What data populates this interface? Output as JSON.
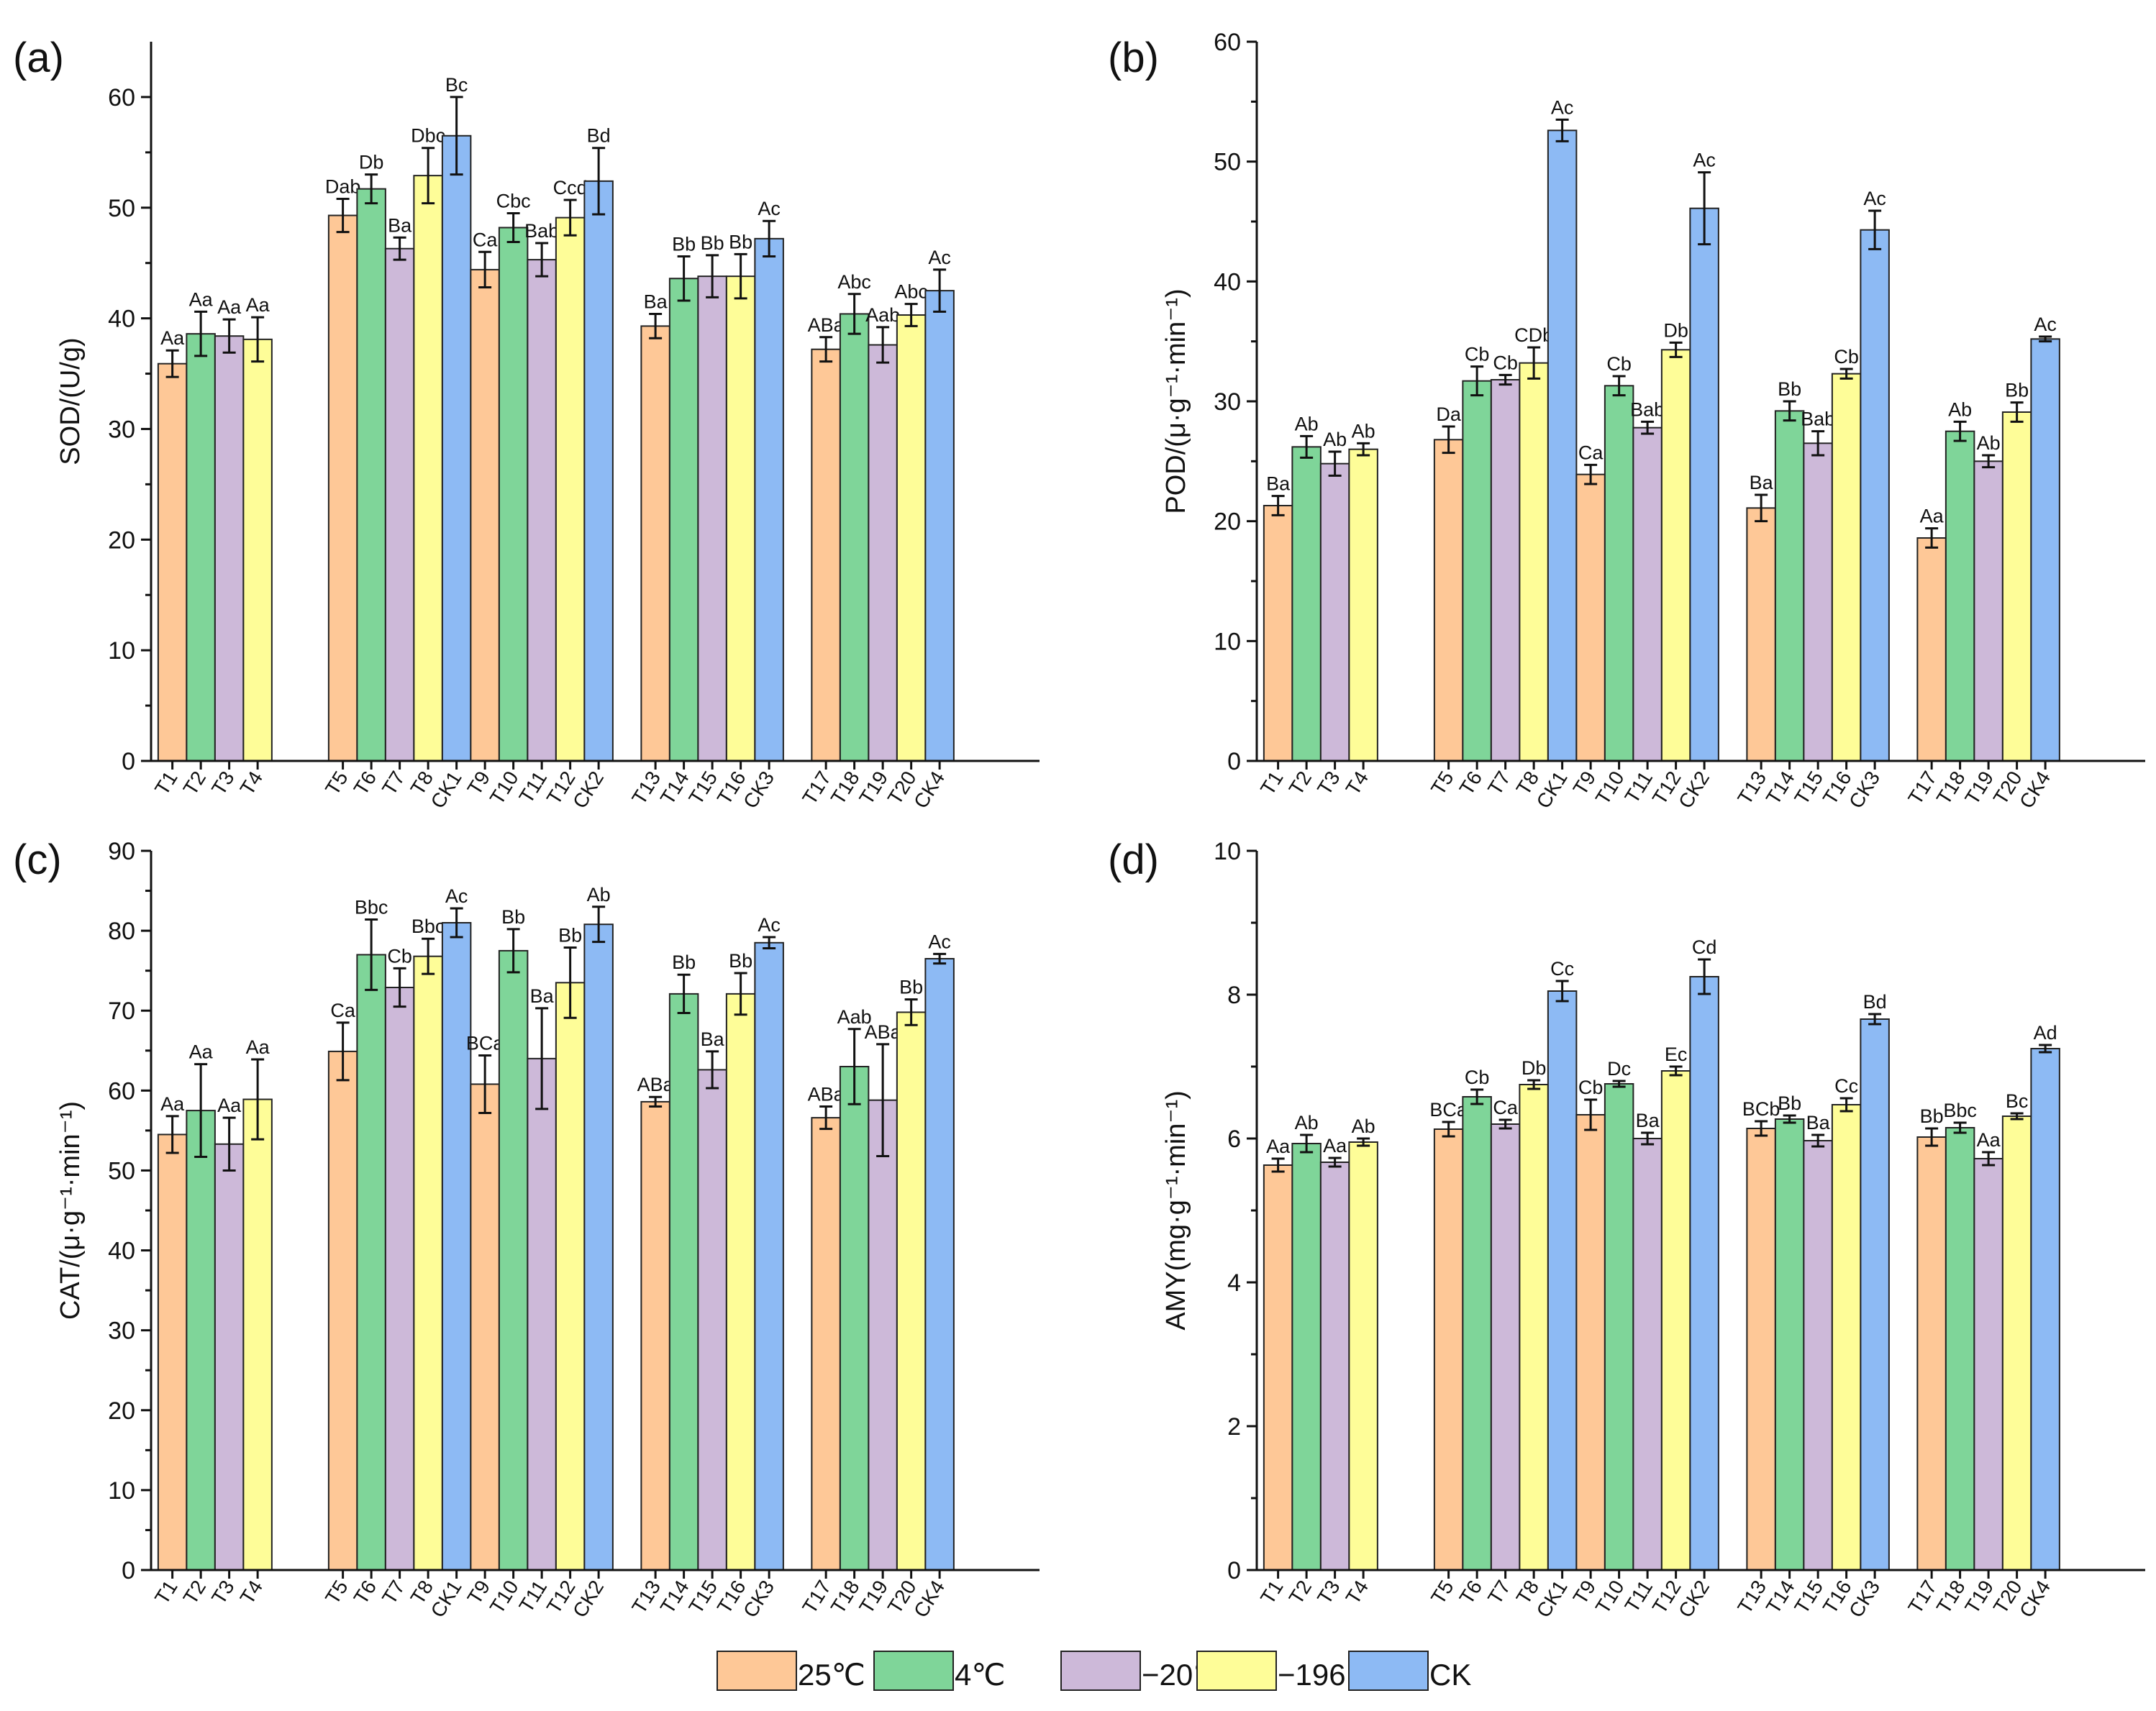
{
  "colors": {
    "25℃": "#FEC897",
    "4℃": "#7FD599",
    "−20℃": "#CDB9D9",
    "−196℃": "#FEFD98",
    "CK": "#8DBAF4"
  },
  "legend": [
    "25℃",
    "4℃",
    "−20℃",
    "−196℃",
    "CK"
  ],
  "chart_data": [
    {
      "panel": "(a)",
      "type": "bar",
      "ylabel": "SOD/(U/g)",
      "ylim": [
        0,
        65
      ],
      "yticks": [
        0,
        10,
        20,
        30,
        40,
        50,
        60
      ],
      "groups": [
        {
          "bars": [
            {
              "label": "T1",
              "series": "25℃",
              "value": 35.9,
              "err": 1.2,
              "sig": "Aa"
            },
            {
              "label": "T2",
              "series": "4℃",
              "value": 38.6,
              "err": 2.0,
              "sig": "Aa"
            },
            {
              "label": "T3",
              "series": "−20℃",
              "value": 38.4,
              "err": 1.5,
              "sig": "Aa"
            },
            {
              "label": "T4",
              "series": "−196℃",
              "value": 38.1,
              "err": 2.0,
              "sig": "Aa"
            }
          ]
        },
        {
          "bars": [
            {
              "label": "T5",
              "series": "25℃",
              "value": 49.3,
              "err": 1.5,
              "sig": "Dab"
            },
            {
              "label": "T6",
              "series": "4℃",
              "value": 51.7,
              "err": 1.3,
              "sig": "Db"
            },
            {
              "label": "T7",
              "series": "−20℃",
              "value": 46.3,
              "err": 1.0,
              "sig": "Ba"
            },
            {
              "label": "T8",
              "series": "−196℃",
              "value": 52.9,
              "err": 2.5,
              "sig": "Dbc"
            },
            {
              "label": "CK1",
              "series": "CK",
              "value": 56.5,
              "err": 3.5,
              "sig": "Bc"
            }
          ]
        },
        {
          "bars": [
            {
              "label": "T9",
              "series": "25℃",
              "value": 44.4,
              "err": 1.6,
              "sig": "Ca"
            },
            {
              "label": "T10",
              "series": "4℃",
              "value": 48.2,
              "err": 1.3,
              "sig": "Cbc"
            },
            {
              "label": "T11",
              "series": "−20℃",
              "value": 45.3,
              "err": 1.5,
              "sig": "Bab"
            },
            {
              "label": "T12",
              "series": "−196℃",
              "value": 49.1,
              "err": 1.6,
              "sig": "Ccd"
            },
            {
              "label": "CK2",
              "series": "CK",
              "value": 52.4,
              "err": 3.0,
              "sig": "Bd"
            }
          ]
        },
        {
          "bars": [
            {
              "label": "T13",
              "series": "25℃",
              "value": 39.3,
              "err": 1.1,
              "sig": "Ba"
            },
            {
              "label": "T14",
              "series": "4℃",
              "value": 43.6,
              "err": 2.0,
              "sig": "Bb"
            },
            {
              "label": "T15",
              "series": "−20℃",
              "value": 43.8,
              "err": 1.9,
              "sig": "Bb"
            },
            {
              "label": "T16",
              "series": "−196℃",
              "value": 43.8,
              "err": 2.0,
              "sig": "Bb"
            },
            {
              "label": "CK3",
              "series": "CK",
              "value": 47.2,
              "err": 1.6,
              "sig": "Ac"
            }
          ]
        },
        {
          "bars": [
            {
              "label": "T17",
              "series": "25℃",
              "value": 37.2,
              "err": 1.1,
              "sig": "ABa"
            },
            {
              "label": "T18",
              "series": "4℃",
              "value": 40.4,
              "err": 1.8,
              "sig": "Abc"
            },
            {
              "label": "T19",
              "series": "−20℃",
              "value": 37.6,
              "err": 1.6,
              "sig": "Aab"
            },
            {
              "label": "T20",
              "series": "−196℃",
              "value": 40.3,
              "err": 1.0,
              "sig": "Abc"
            },
            {
              "label": "CK4",
              "series": "CK",
              "value": 42.5,
              "err": 1.9,
              "sig": "Ac"
            }
          ]
        }
      ]
    },
    {
      "panel": "(b)",
      "type": "bar",
      "ylabel": "POD/(μ·g⁻¹·min⁻¹)",
      "ylim": [
        0,
        60
      ],
      "yticks": [
        0,
        10,
        20,
        30,
        40,
        50,
        60
      ],
      "groups": [
        {
          "bars": [
            {
              "label": "T1",
              "series": "25℃",
              "value": 21.3,
              "err": 0.8,
              "sig": "Ba"
            },
            {
              "label": "T2",
              "series": "4℃",
              "value": 26.2,
              "err": 0.9,
              "sig": "Ab"
            },
            {
              "label": "T3",
              "series": "−20℃",
              "value": 24.8,
              "err": 1.0,
              "sig": "Ab"
            },
            {
              "label": "T4",
              "series": "−196℃",
              "value": 26.0,
              "err": 0.5,
              "sig": "Ab"
            }
          ]
        },
        {
          "bars": [
            {
              "label": "T5",
              "series": "25℃",
              "value": 26.8,
              "err": 1.1,
              "sig": "Da"
            },
            {
              "label": "T6",
              "series": "4℃",
              "value": 31.7,
              "err": 1.2,
              "sig": "Cb"
            },
            {
              "label": "T7",
              "series": "−20℃",
              "value": 31.8,
              "err": 0.4,
              "sig": "Cb"
            },
            {
              "label": "T8",
              "series": "−196℃",
              "value": 33.2,
              "err": 1.3,
              "sig": "CDb"
            },
            {
              "label": "CK1",
              "series": "CK",
              "value": 52.6,
              "err": 0.9,
              "sig": "Ac"
            }
          ]
        },
        {
          "bars": [
            {
              "label": "T9",
              "series": "25℃",
              "value": 23.9,
              "err": 0.8,
              "sig": "Ca"
            },
            {
              "label": "T10",
              "series": "4℃",
              "value": 31.3,
              "err": 0.8,
              "sig": "Cb"
            },
            {
              "label": "T11",
              "series": "−20℃",
              "value": 27.8,
              "err": 0.5,
              "sig": "Bab"
            },
            {
              "label": "T12",
              "series": "−196℃",
              "value": 34.3,
              "err": 0.6,
              "sig": "Db"
            },
            {
              "label": "CK2",
              "series": "CK",
              "value": 46.1,
              "err": 3.0,
              "sig": "Ac"
            }
          ]
        },
        {
          "bars": [
            {
              "label": "T13",
              "series": "25℃",
              "value": 21.1,
              "err": 1.1,
              "sig": "Ba"
            },
            {
              "label": "T14",
              "series": "4℃",
              "value": 29.2,
              "err": 0.8,
              "sig": "Bb"
            },
            {
              "label": "T15",
              "series": "−20℃",
              "value": 26.5,
              "err": 1.0,
              "sig": "Bab"
            },
            {
              "label": "T16",
              "series": "−196℃",
              "value": 32.3,
              "err": 0.4,
              "sig": "Cb"
            },
            {
              "label": "CK3",
              "series": "CK",
              "value": 44.3,
              "err": 1.6,
              "sig": "Ac"
            }
          ]
        },
        {
          "bars": [
            {
              "label": "T17",
              "series": "25℃",
              "value": 18.6,
              "err": 0.8,
              "sig": "Aa"
            },
            {
              "label": "T18",
              "series": "4℃",
              "value": 27.5,
              "err": 0.8,
              "sig": "Ab"
            },
            {
              "label": "T19",
              "series": "−20℃",
              "value": 25.0,
              "err": 0.5,
              "sig": "Ab"
            },
            {
              "label": "T20",
              "series": "−196℃",
              "value": 29.1,
              "err": 0.8,
              "sig": "Bb"
            },
            {
              "label": "CK4",
              "series": "CK",
              "value": 35.2,
              "err": 0.2,
              "sig": "Ac"
            }
          ]
        }
      ]
    },
    {
      "panel": "(c)",
      "type": "bar",
      "ylabel": "CAT/(μ·g⁻¹·min⁻¹)",
      "ylim": [
        0,
        90
      ],
      "yticks": [
        0,
        10,
        20,
        30,
        40,
        50,
        60,
        70,
        80,
        90
      ],
      "groups": [
        {
          "bars": [
            {
              "label": "T1",
              "series": "25℃",
              "value": 54.5,
              "err": 2.3,
              "sig": "Aa"
            },
            {
              "label": "T2",
              "series": "4℃",
              "value": 57.5,
              "err": 5.8,
              "sig": "Aa"
            },
            {
              "label": "T3",
              "series": "−20℃",
              "value": 53.3,
              "err": 3.3,
              "sig": "Aa"
            },
            {
              "label": "T4",
              "series": "−196℃",
              "value": 58.9,
              "err": 5.0,
              "sig": "Aa"
            }
          ]
        },
        {
          "bars": [
            {
              "label": "T5",
              "series": "25℃",
              "value": 64.9,
              "err": 3.6,
              "sig": "Ca"
            },
            {
              "label": "T6",
              "series": "4℃",
              "value": 77.0,
              "err": 4.4,
              "sig": "Bbc"
            },
            {
              "label": "T7",
              "series": "−20℃",
              "value": 72.9,
              "err": 2.4,
              "sig": "Cb"
            },
            {
              "label": "T8",
              "series": "−196℃",
              "value": 76.8,
              "err": 2.2,
              "sig": "Bbc"
            },
            {
              "label": "CK1",
              "series": "CK",
              "value": 81.0,
              "err": 1.8,
              "sig": "Ac"
            }
          ]
        },
        {
          "bars": [
            {
              "label": "T9",
              "series": "25℃",
              "value": 60.8,
              "err": 3.6,
              "sig": "BCa"
            },
            {
              "label": "T10",
              "series": "4℃",
              "value": 77.5,
              "err": 2.7,
              "sig": "Bb"
            },
            {
              "label": "T11",
              "series": "−20℃",
              "value": 64.0,
              "err": 6.3,
              "sig": "Ba"
            },
            {
              "label": "T12",
              "series": "−196℃",
              "value": 73.5,
              "err": 4.4,
              "sig": "Bb"
            },
            {
              "label": "CK2",
              "series": "CK",
              "value": 80.8,
              "err": 2.2,
              "sig": "Ab"
            }
          ]
        },
        {
          "bars": [
            {
              "label": "T13",
              "series": "25℃",
              "value": 58.6,
              "err": 0.6,
              "sig": "ABa"
            },
            {
              "label": "T14",
              "series": "4℃",
              "value": 72.1,
              "err": 2.4,
              "sig": "Bb"
            },
            {
              "label": "T15",
              "series": "−20℃",
              "value": 62.6,
              "err": 2.3,
              "sig": "Ba"
            },
            {
              "label": "T16",
              "series": "−196℃",
              "value": 72.1,
              "err": 2.6,
              "sig": "Bb"
            },
            {
              "label": "CK3",
              "series": "CK",
              "value": 78.5,
              "err": 0.7,
              "sig": "Ac"
            }
          ]
        },
        {
          "bars": [
            {
              "label": "T17",
              "series": "25℃",
              "value": 56.6,
              "err": 1.4,
              "sig": "ABa"
            },
            {
              "label": "T18",
              "series": "4℃",
              "value": 63.0,
              "err": 4.7,
              "sig": "Aab"
            },
            {
              "label": "T19",
              "series": "−20℃",
              "value": 58.8,
              "err": 7.0,
              "sig": "ABa"
            },
            {
              "label": "T20",
              "series": "−196℃",
              "value": 69.8,
              "err": 1.6,
              "sig": "Bb"
            },
            {
              "label": "CK4",
              "series": "CK",
              "value": 76.5,
              "err": 0.6,
              "sig": "Ac"
            }
          ]
        }
      ]
    },
    {
      "panel": "(d)",
      "type": "bar",
      "ylabel": "AMY(mg·g⁻¹·min⁻¹)",
      "ylim": [
        0,
        10
      ],
      "yticks": [
        0,
        2,
        4,
        6,
        8,
        10
      ],
      "groups": [
        {
          "bars": [
            {
              "label": "T1",
              "series": "25℃",
              "value": 5.63,
              "err": 0.09,
              "sig": "Aa"
            },
            {
              "label": "T2",
              "series": "4℃",
              "value": 5.93,
              "err": 0.12,
              "sig": "Ab"
            },
            {
              "label": "T3",
              "series": "−20℃",
              "value": 5.67,
              "err": 0.06,
              "sig": "Aa"
            },
            {
              "label": "T4",
              "series": "−196℃",
              "value": 5.95,
              "err": 0.05,
              "sig": "Ab"
            }
          ]
        },
        {
          "bars": [
            {
              "label": "T5",
              "series": "25℃",
              "value": 6.13,
              "err": 0.1,
              "sig": "BCa"
            },
            {
              "label": "T6",
              "series": "4℃",
              "value": 6.58,
              "err": 0.1,
              "sig": "Cb"
            },
            {
              "label": "T7",
              "series": "−20℃",
              "value": 6.2,
              "err": 0.06,
              "sig": "Ca"
            },
            {
              "label": "T8",
              "series": "−196℃",
              "value": 6.75,
              "err": 0.06,
              "sig": "Db"
            },
            {
              "label": "CK1",
              "series": "CK",
              "value": 8.05,
              "err": 0.14,
              "sig": "Cc"
            }
          ]
        },
        {
          "bars": [
            {
              "label": "T9",
              "series": "25℃",
              "value": 6.33,
              "err": 0.21,
              "sig": "Cb"
            },
            {
              "label": "T10",
              "series": "4℃",
              "value": 6.76,
              "err": 0.04,
              "sig": "Dc"
            },
            {
              "label": "T11",
              "series": "−20℃",
              "value": 6.0,
              "err": 0.08,
              "sig": "Ba"
            },
            {
              "label": "T12",
              "series": "−196℃",
              "value": 6.94,
              "err": 0.06,
              "sig": "Ec"
            },
            {
              "label": "CK2",
              "series": "CK",
              "value": 8.25,
              "err": 0.24,
              "sig": "Cd"
            }
          ]
        },
        {
          "bars": [
            {
              "label": "T13",
              "series": "25℃",
              "value": 6.14,
              "err": 0.1,
              "sig": "BCb"
            },
            {
              "label": "T14",
              "series": "4℃",
              "value": 6.27,
              "err": 0.05,
              "sig": "Bb"
            },
            {
              "label": "T15",
              "series": "−20℃",
              "value": 5.97,
              "err": 0.08,
              "sig": "Ba"
            },
            {
              "label": "T16",
              "series": "−196℃",
              "value": 6.47,
              "err": 0.09,
              "sig": "Cc"
            },
            {
              "label": "CK3",
              "series": "CK",
              "value": 7.66,
              "err": 0.07,
              "sig": "Bd"
            }
          ]
        },
        {
          "bars": [
            {
              "label": "T17",
              "series": "25℃",
              "value": 6.02,
              "err": 0.12,
              "sig": "Bb"
            },
            {
              "label": "T18",
              "series": "4℃",
              "value": 6.15,
              "err": 0.07,
              "sig": "Bbc"
            },
            {
              "label": "T19",
              "series": "−20℃",
              "value": 5.72,
              "err": 0.09,
              "sig": "Aa"
            },
            {
              "label": "T20",
              "series": "−196℃",
              "value": 6.31,
              "err": 0.04,
              "sig": "Bc"
            },
            {
              "label": "CK4",
              "series": "CK",
              "value": 7.25,
              "err": 0.05,
              "sig": "Ad"
            }
          ]
        }
      ]
    }
  ]
}
